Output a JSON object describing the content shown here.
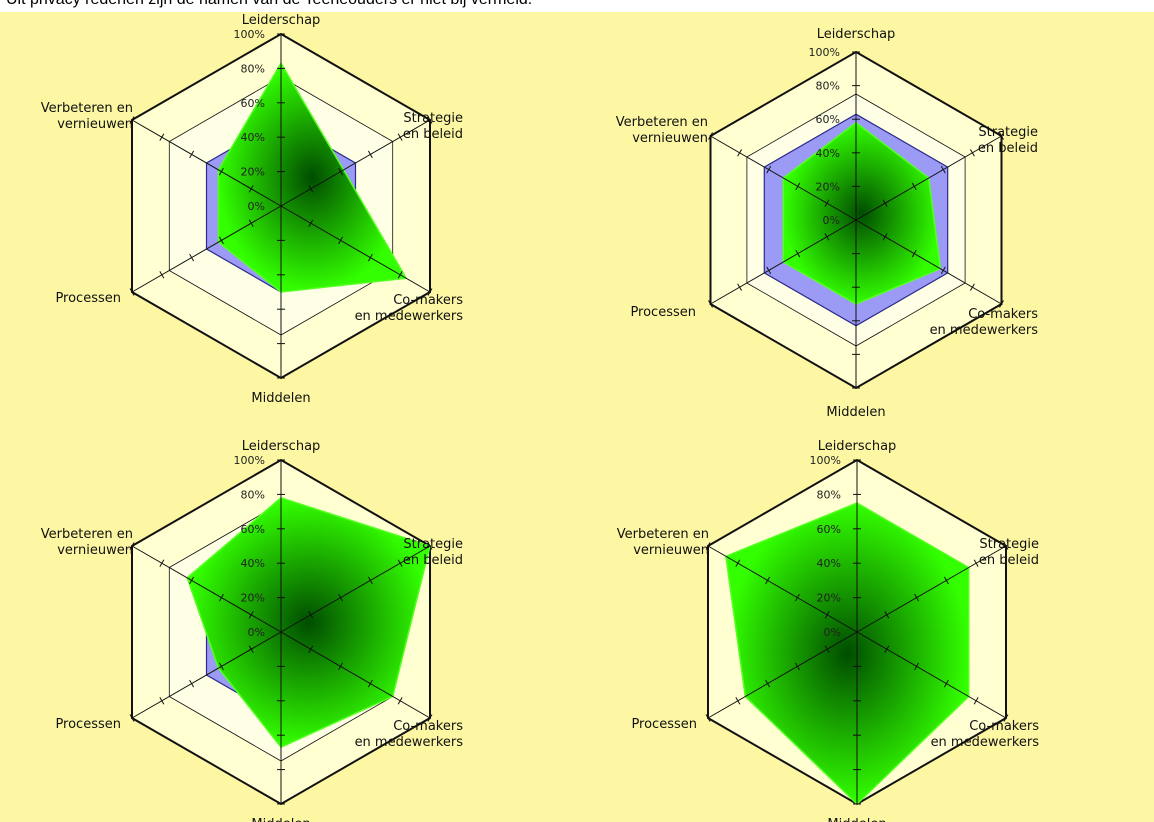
{
  "caption": "Uit privacy redenen zijn de namen van de Teeneouders er niet bij vermeld.",
  "colors": {
    "background": "#fdf7a4",
    "ring_fill": "#ffffd2",
    "reference_fill": "#9b9bf5",
    "series_fill_edge": "#33ff00",
    "series_fill_center": "#004d00",
    "grid": "#111111"
  },
  "chart_data": [
    {
      "type": "radar",
      "axes": [
        "Leiderschap",
        "Strategie\nen beleid",
        "Co-makers\nen medewerkers",
        "Middelen",
        "Processen",
        "Verbeteren en\nvernieuwen"
      ],
      "tick_labels": [
        "0%",
        "20%",
        "40%",
        "60%",
        "80%",
        "100%"
      ],
      "range": [
        0,
        100
      ],
      "series": [
        {
          "values": [
            50,
            50,
            50,
            50,
            50,
            50
          ]
        },
        {
          "values": [
            83,
            42,
            84,
            50,
            42,
            42
          ]
        }
      ]
    },
    {
      "type": "radar",
      "axes": [
        "Leiderschap",
        "Strategie\nen beleid",
        "Co-makers\nen medewerkers",
        "Middelen",
        "Processen",
        "Verbeteren en\nvernieuwen"
      ],
      "tick_labels": [
        "0%",
        "20%",
        "40%",
        "60%",
        "80%",
        "100%"
      ],
      "range": [
        0,
        100
      ],
      "series": [
        {
          "values": [
            63,
            63,
            63,
            63,
            63,
            63
          ]
        },
        {
          "values": [
            58,
            50,
            58,
            50,
            50,
            50
          ]
        }
      ]
    },
    {
      "type": "radar",
      "axes": [
        "Leiderschap",
        "Strategie\nen beleid",
        "Co-makers\nen medewerkers",
        "Middelen",
        "Processen",
        "Verbeteren en\nvernieuwen"
      ],
      "tick_labels": [
        "0%",
        "20%",
        "40%",
        "60%",
        "80%",
        "100%"
      ],
      "range": [
        0,
        100
      ],
      "series": [
        {
          "values": [
            50,
            50,
            50,
            50,
            50,
            50
          ]
        },
        {
          "values": [
            78,
            100,
            75,
            67,
            42,
            63
          ]
        }
      ]
    },
    {
      "type": "radar",
      "axes": [
        "Leiderschap",
        "Strategie\nen beleid",
        "Co-makers\nen medewerkers",
        "Middelen",
        "Processen",
        "Verbeteren en\nvernieuwen"
      ],
      "tick_labels": [
        "0%",
        "20%",
        "40%",
        "60%",
        "80%",
        "100%"
      ],
      "range": [
        0,
        100
      ],
      "series": [
        {
          "values": [
            50,
            50,
            50,
            50,
            50,
            50
          ]
        },
        {
          "values": [
            75,
            75,
            75,
            100,
            75,
            88
          ]
        }
      ]
    }
  ]
}
